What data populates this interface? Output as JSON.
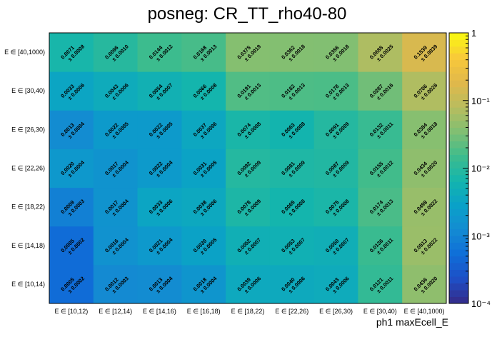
{
  "chart_data": {
    "type": "heatmap",
    "title": "posneg: CR_TT_rho40-80",
    "xlabel": "ph1 maxEcell_E",
    "ylabel": "",
    "x_categories": [
      "E ∈ [10,12)",
      "E ∈ [12,14)",
      "E ∈ [14,16)",
      "E ∈ [16,18)",
      "E ∈ [18,22)",
      "E ∈ [22,26)",
      "E ∈ [26,30)",
      "E ∈ [30,40)",
      "E ∈ [40,1000)"
    ],
    "y_categories": [
      "E ∈ [10,14)",
      "E ∈ [14,18)",
      "E ∈ [18,22)",
      "E ∈ [22,26)",
      "E ∈ [26,30)",
      "E ∈ [30,40)",
      "E ∈ [40,1000)"
    ],
    "values": [
      [
        0.0005,
        0.0012,
        0.0013,
        0.0018,
        0.0039,
        0.004,
        0.0043,
        0.0121,
        0.0436
      ],
      [
        0.0005,
        0.0016,
        0.0021,
        0.003,
        0.0052,
        0.0053,
        0.005,
        0.0136,
        0.0513
      ],
      [
        0.0009,
        0.0017,
        0.0033,
        0.0038,
        0.0078,
        0.0065,
        0.0075,
        0.0174,
        0.0498
      ],
      [
        0.002,
        0.0017,
        0.0022,
        0.0031,
        0.0092,
        0.0081,
        0.0087,
        0.0155,
        0.0434
      ],
      [
        0.0013,
        0.0022,
        0.0022,
        0.0037,
        0.0074,
        0.0063,
        0.0091,
        0.0132,
        0.0384
      ],
      [
        0.0033,
        0.0043,
        0.0054,
        0.0066,
        0.0191,
        0.0182,
        0.0178,
        0.0287,
        0.0706
      ],
      [
        0.0071,
        0.0096,
        0.0144,
        0.0168,
        0.0375,
        0.0362,
        0.0356,
        0.0685,
        0.1539
      ]
    ],
    "errors": [
      [
        0.0002,
        0.0003,
        0.0004,
        0.0004,
        0.0006,
        0.0006,
        0.0006,
        0.0011,
        0.002
      ],
      [
        0.0002,
        0.0004,
        0.0004,
        0.0005,
        0.0007,
        0.0007,
        0.0007,
        0.0011,
        0.0022
      ],
      [
        0.0003,
        0.0004,
        0.0006,
        0.0006,
        0.0009,
        0.0008,
        0.0008,
        0.0013,
        0.0022
      ],
      [
        0.0004,
        0.0004,
        0.0004,
        0.0005,
        0.0009,
        0.0009,
        0.0009,
        0.0012,
        0.002
      ],
      [
        0.0004,
        0.0005,
        0.0005,
        0.0006,
        0.0008,
        0.0008,
        0.0009,
        0.0011,
        0.0018
      ],
      [
        0.0006,
        0.0006,
        0.0007,
        0.0008,
        0.0013,
        0.0013,
        0.0013,
        0.0016,
        0.0026
      ],
      [
        0.0008,
        0.001,
        0.0012,
        0.0013,
        0.0019,
        0.0018,
        0.0018,
        0.0025,
        0.0039
      ]
    ],
    "zscale": "log",
    "zlim": [
      0.0001,
      1
    ],
    "colorbar_ticks": [
      {
        "value": 1,
        "label": "1"
      },
      {
        "value": 0.1,
        "label": "10⁻¹"
      },
      {
        "value": 0.01,
        "label": "10⁻²"
      },
      {
        "value": 0.001,
        "label": "10⁻³"
      },
      {
        "value": 0.0001,
        "label": "10⁻⁴"
      }
    ],
    "palette": [
      "#352a87",
      "#1e4fc6",
      "#0f6ed8",
      "#148bd2",
      "#0aa1c8",
      "#14b5ad",
      "#3fbc8c",
      "#81bf72",
      "#b9bd5e",
      "#e1b84a",
      "#f8c93a",
      "#f9fb0e"
    ],
    "grid": false,
    "legend": "colorbar-right"
  }
}
